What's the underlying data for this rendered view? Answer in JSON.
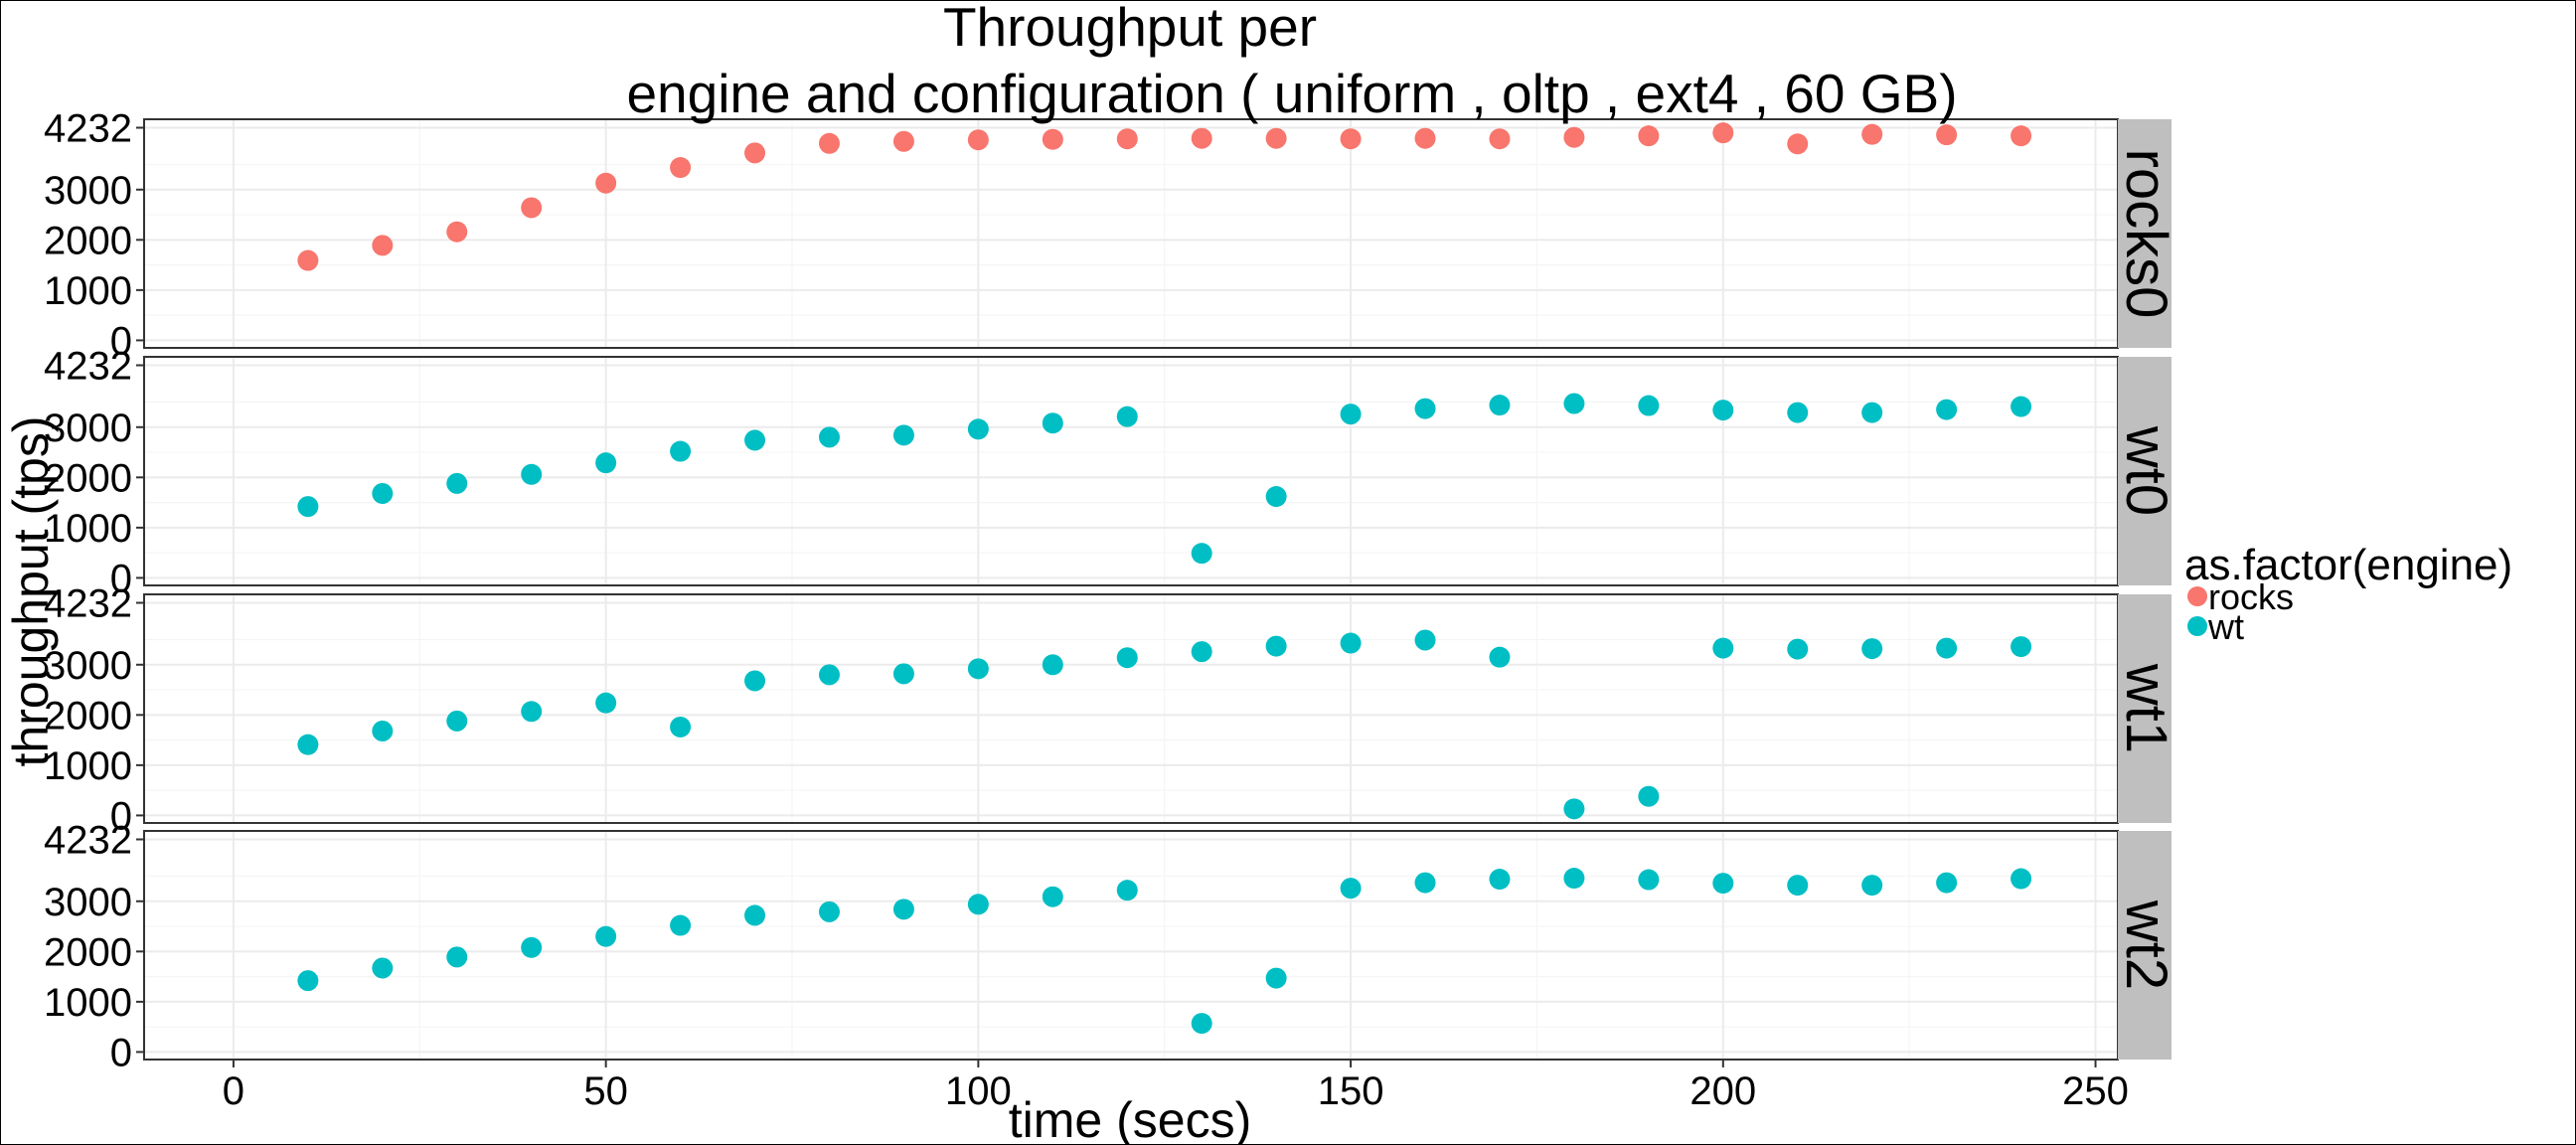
{
  "chart_data": {
    "type": "scatter",
    "title_line1": "Throughput per",
    "title_line2": "engine and configuration ( uniform , oltp , ext4 ,  60 GB)",
    "xlabel": "time (secs)",
    "ylabel": "throughput (tps)",
    "xlim": [
      -12,
      253
    ],
    "ylim": [
      -150,
      4400
    ],
    "x_ticks": [
      "0",
      "50",
      "100",
      "150",
      "200",
      "250"
    ],
    "y_ticks": [
      "0",
      "1000",
      "2000",
      "3000",
      "4232"
    ],
    "legend": {
      "title": "as.factor(engine)",
      "position": "right",
      "entries": [
        {
          "label": "rocks",
          "color": "#F8766D"
        },
        {
          "label": "wt",
          "color": "#00BFC4"
        }
      ]
    },
    "grid": true,
    "x": [
      10,
      20,
      30,
      40,
      50,
      60,
      70,
      80,
      90,
      100,
      110,
      120,
      130,
      140,
      150,
      160,
      170,
      180,
      190,
      200,
      210,
      220,
      230,
      240
    ],
    "panels": [
      {
        "strip": "rocks0",
        "engine": "rocks",
        "values": [
          1590,
          1890,
          2160,
          2640,
          3130,
          3440,
          3730,
          3920,
          3960,
          3990,
          4000,
          4010,
          4020,
          4020,
          4010,
          4020,
          4010,
          4040,
          4070,
          4130,
          3910,
          4100,
          4090,
          4070
        ]
      },
      {
        "strip": "wt0",
        "engine": "wt",
        "values": [
          1420,
          1680,
          1880,
          2060,
          2290,
          2520,
          2740,
          2800,
          2840,
          2960,
          3080,
          3210,
          490,
          1620,
          3260,
          3370,
          3440,
          3470,
          3430,
          3340,
          3290,
          3290,
          3350,
          3410
        ]
      },
      {
        "strip": "wt1",
        "engine": "wt",
        "values": [
          1410,
          1680,
          1880,
          2070,
          2240,
          1760,
          2680,
          2800,
          2820,
          2920,
          3000,
          3140,
          3260,
          3370,
          3430,
          3490,
          3150,
          130,
          380,
          3330,
          3310,
          3320,
          3330,
          3360
        ]
      },
      {
        "strip": "wt2",
        "engine": "wt",
        "values": [
          1420,
          1670,
          1890,
          2080,
          2300,
          2520,
          2720,
          2790,
          2840,
          2940,
          3090,
          3220,
          570,
          1470,
          3260,
          3370,
          3440,
          3460,
          3430,
          3360,
          3320,
          3320,
          3370,
          3450
        ]
      }
    ]
  },
  "colors": {
    "panel_background": "#ffffff",
    "grid_major": "#ebebeb",
    "grid_minor": "#f5f5f5",
    "strip_fill": "#bfbfbf",
    "panel_border": "#333333"
  }
}
